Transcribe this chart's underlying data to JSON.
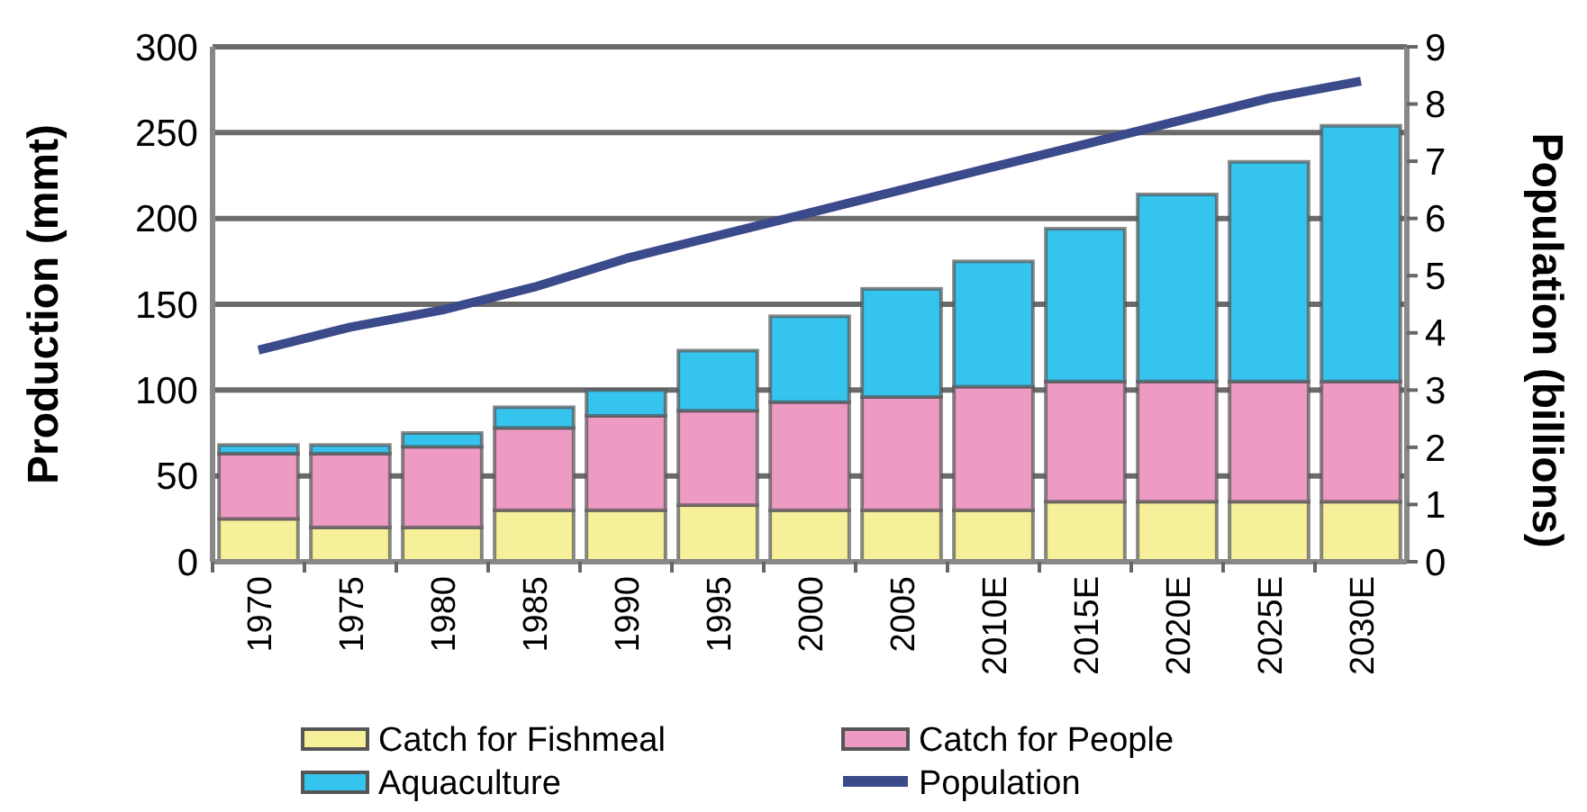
{
  "chart_data": {
    "type": "bar",
    "stacked": true,
    "ylabel": "Production (mmt)",
    "y2label": "Population (billions)",
    "categories": [
      "1970",
      "1975",
      "1980",
      "1985",
      "1990",
      "1995",
      "2000",
      "2005",
      "2010E",
      "2015E",
      "2020E",
      "2025E",
      "2030E"
    ],
    "series": [
      {
        "name": "Catch for Fishmeal",
        "color": "#f7f09a",
        "values": [
          25,
          20,
          20,
          30,
          30,
          33,
          30,
          30,
          30,
          35,
          35,
          35,
          35
        ]
      },
      {
        "name": "Catch for People",
        "color": "#ee9bc4",
        "values": [
          38,
          43,
          47,
          48,
          55,
          55,
          63,
          66,
          72,
          70,
          70,
          70,
          70
        ]
      },
      {
        "name": "Aquaculture",
        "color": "#35c4ee",
        "values": [
          5,
          5,
          8,
          12,
          15,
          35,
          50,
          63,
          73,
          89,
          109,
          128,
          149
        ]
      },
      {
        "name": "Population",
        "type": "line",
        "axis": "y2",
        "color": "#3a4a8a",
        "values": [
          3.7,
          4.1,
          4.4,
          4.8,
          5.3,
          5.7,
          6.1,
          6.5,
          6.9,
          7.3,
          7.7,
          8.1,
          8.4
        ]
      }
    ],
    "ylim": [
      0,
      300
    ],
    "yticks": [
      0,
      50,
      100,
      150,
      200,
      250,
      300
    ],
    "y2lim": [
      0,
      9
    ],
    "y2ticks": [
      0,
      1,
      2,
      3,
      4,
      5,
      6,
      7,
      8,
      9
    ],
    "grid": "y",
    "legend": "bottom",
    "line_style": "solid"
  }
}
